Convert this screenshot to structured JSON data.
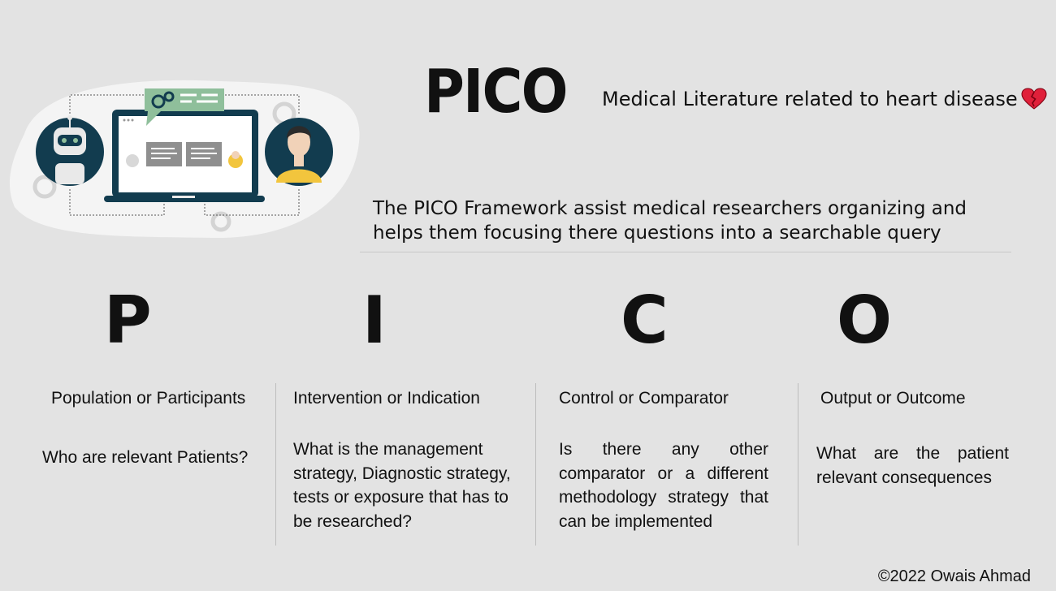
{
  "header": {
    "title": "PICO",
    "subtitle": "Medical Literature  related to heart disease"
  },
  "description": "The PICO Framework assist medical researchers organizing and helps them focusing there questions into a searchable query",
  "columns": [
    {
      "letter": "P",
      "title": "Population or Participants",
      "text": "Who are relevant Patients?"
    },
    {
      "letter": "I",
      "title": "Intervention or Indication",
      "text": "What is the management strategy, Diagnostic strategy, tests or exposure that has to be researched?"
    },
    {
      "letter": "C",
      "title": "Control or Comparator",
      "text": "Is there any other comparator or a different methodology strategy that can be implemented"
    },
    {
      "letter": "O",
      "title": "Output or Outcome",
      "text": "What are the patient relevant consequences"
    }
  ],
  "footer": "©2022 Owais Ahmad",
  "colors": {
    "background": "#e3e3e3",
    "illustration_dark": "#123c4f",
    "illustration_green": "#8fbf9b",
    "heart": "#e0203a",
    "person_shirt": "#f2c53d"
  },
  "icons": [
    "chatbot-illustration",
    "robot-avatar-icon",
    "person-avatar-icon",
    "laptop-icon",
    "gear-icon",
    "broken-heart-icon"
  ]
}
